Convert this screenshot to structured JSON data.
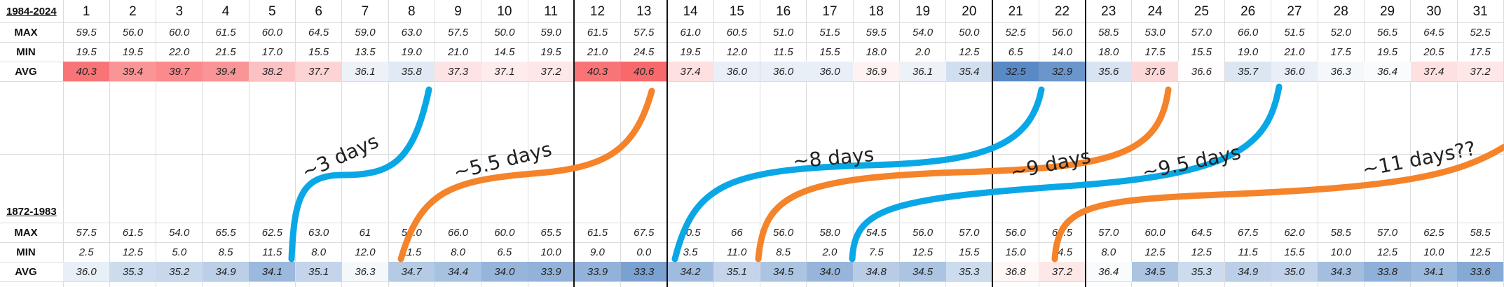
{
  "periods": {
    "recent": "1984-2024",
    "historic": "1872-1983"
  },
  "row_labels": [
    "MAX",
    "MIN",
    "AVG"
  ],
  "days": [
    "1",
    "2",
    "3",
    "4",
    "5",
    "6",
    "7",
    "8",
    "9",
    "10",
    "11",
    "12",
    "13",
    "14",
    "15",
    "16",
    "17",
    "18",
    "19",
    "20",
    "21",
    "22",
    "23",
    "24",
    "25",
    "26",
    "27",
    "28",
    "29",
    "30",
    "31"
  ],
  "chart_data": {
    "type": "table",
    "tables": [
      {
        "period": "1984-2024",
        "max": [
          "59.5",
          "56.0",
          "60.0",
          "61.5",
          "60.0",
          "64.5",
          "59.0",
          "63.0",
          "57.5",
          "50.0",
          "59.0",
          "61.5",
          "57.5",
          "61.0",
          "60.5",
          "51.0",
          "51.5",
          "59.5",
          "54.0",
          "50.0",
          "52.5",
          "56.0",
          "58.5",
          "53.0",
          "57.0",
          "66.0",
          "51.5",
          "52.0",
          "56.5",
          "64.5",
          "52.5"
        ],
        "min": [
          "19.5",
          "19.5",
          "22.0",
          "21.5",
          "17.0",
          "15.5",
          "13.5",
          "19.0",
          "21.0",
          "14.5",
          "19.5",
          "21.0",
          "24.5",
          "19.5",
          "12.0",
          "11.5",
          "15.5",
          "18.0",
          "2.0",
          "12.5",
          "6.5",
          "14.0",
          "18.0",
          "17.5",
          "15.5",
          "19.0",
          "21.0",
          "17.5",
          "19.5",
          "20.5",
          "17.5"
        ],
        "avg": [
          "40.3",
          "39.4",
          "39.7",
          "39.4",
          "38.2",
          "37.7",
          "36.1",
          "35.8",
          "37.3",
          "37.1",
          "37.2",
          "40.3",
          "40.6",
          "37.4",
          "36.0",
          "36.0",
          "36.0",
          "36.9",
          "36.1",
          "35.4",
          "32.5",
          "32.9",
          "35.6",
          "37.6",
          "36.6",
          "35.7",
          "36.0",
          "36.3",
          "36.4",
          "37.4",
          "37.2"
        ]
      },
      {
        "period": "1872-1983",
        "max": [
          "57.5",
          "61.5",
          "54.0",
          "65.5",
          "62.5",
          "63.0",
          "61",
          "59.0",
          "66.0",
          "60.0",
          "65.5",
          "61.5",
          "67.5",
          "60.5",
          "66",
          "56.0",
          "58.0",
          "54.5",
          "56.0",
          "57.0",
          "56.0",
          "60.5",
          "57.0",
          "60.0",
          "64.5",
          "67.5",
          "62.0",
          "58.5",
          "57.0",
          "62.5",
          "58.5"
        ],
        "min": [
          "2.5",
          "12.5",
          "5.0",
          "8.5",
          "11.5",
          "8.0",
          "12.0",
          "11.5",
          "8.0",
          "6.5",
          "10.0",
          "9.0",
          "0.0",
          "3.5",
          "11.0",
          "8.5",
          "2.0",
          "7.5",
          "12.5",
          "15.5",
          "15.0",
          "14.5",
          "8.0",
          "12.5",
          "12.5",
          "11.5",
          "15.5",
          "10.0",
          "12.5",
          "10.0",
          "12.5"
        ],
        "avg": [
          "36.0",
          "35.3",
          "35.2",
          "34.9",
          "34.1",
          "35.1",
          "36.3",
          "34.7",
          "34.4",
          "34.0",
          "33.9",
          "33.9",
          "33.3",
          "34.2",
          "35.1",
          "34.5",
          "34.0",
          "34.8",
          "34.5",
          "35.3",
          "36.8",
          "37.2",
          "36.4",
          "34.5",
          "35.3",
          "34.9",
          "35.0",
          "34.3",
          "33.8",
          "34.1",
          "33.6"
        ]
      }
    ],
    "color_scale": {
      "warm": "#f8696b",
      "neutral": "#ffffff",
      "cool": "#5a8ac6"
    },
    "annotations": [
      "~3 days",
      "~5.5 days",
      "~8 days",
      "~9 days",
      "~9.5 days",
      "~11 days??"
    ],
    "arrow_colors": {
      "blue": "#0aa7e6",
      "orange": "#f5832a"
    }
  }
}
